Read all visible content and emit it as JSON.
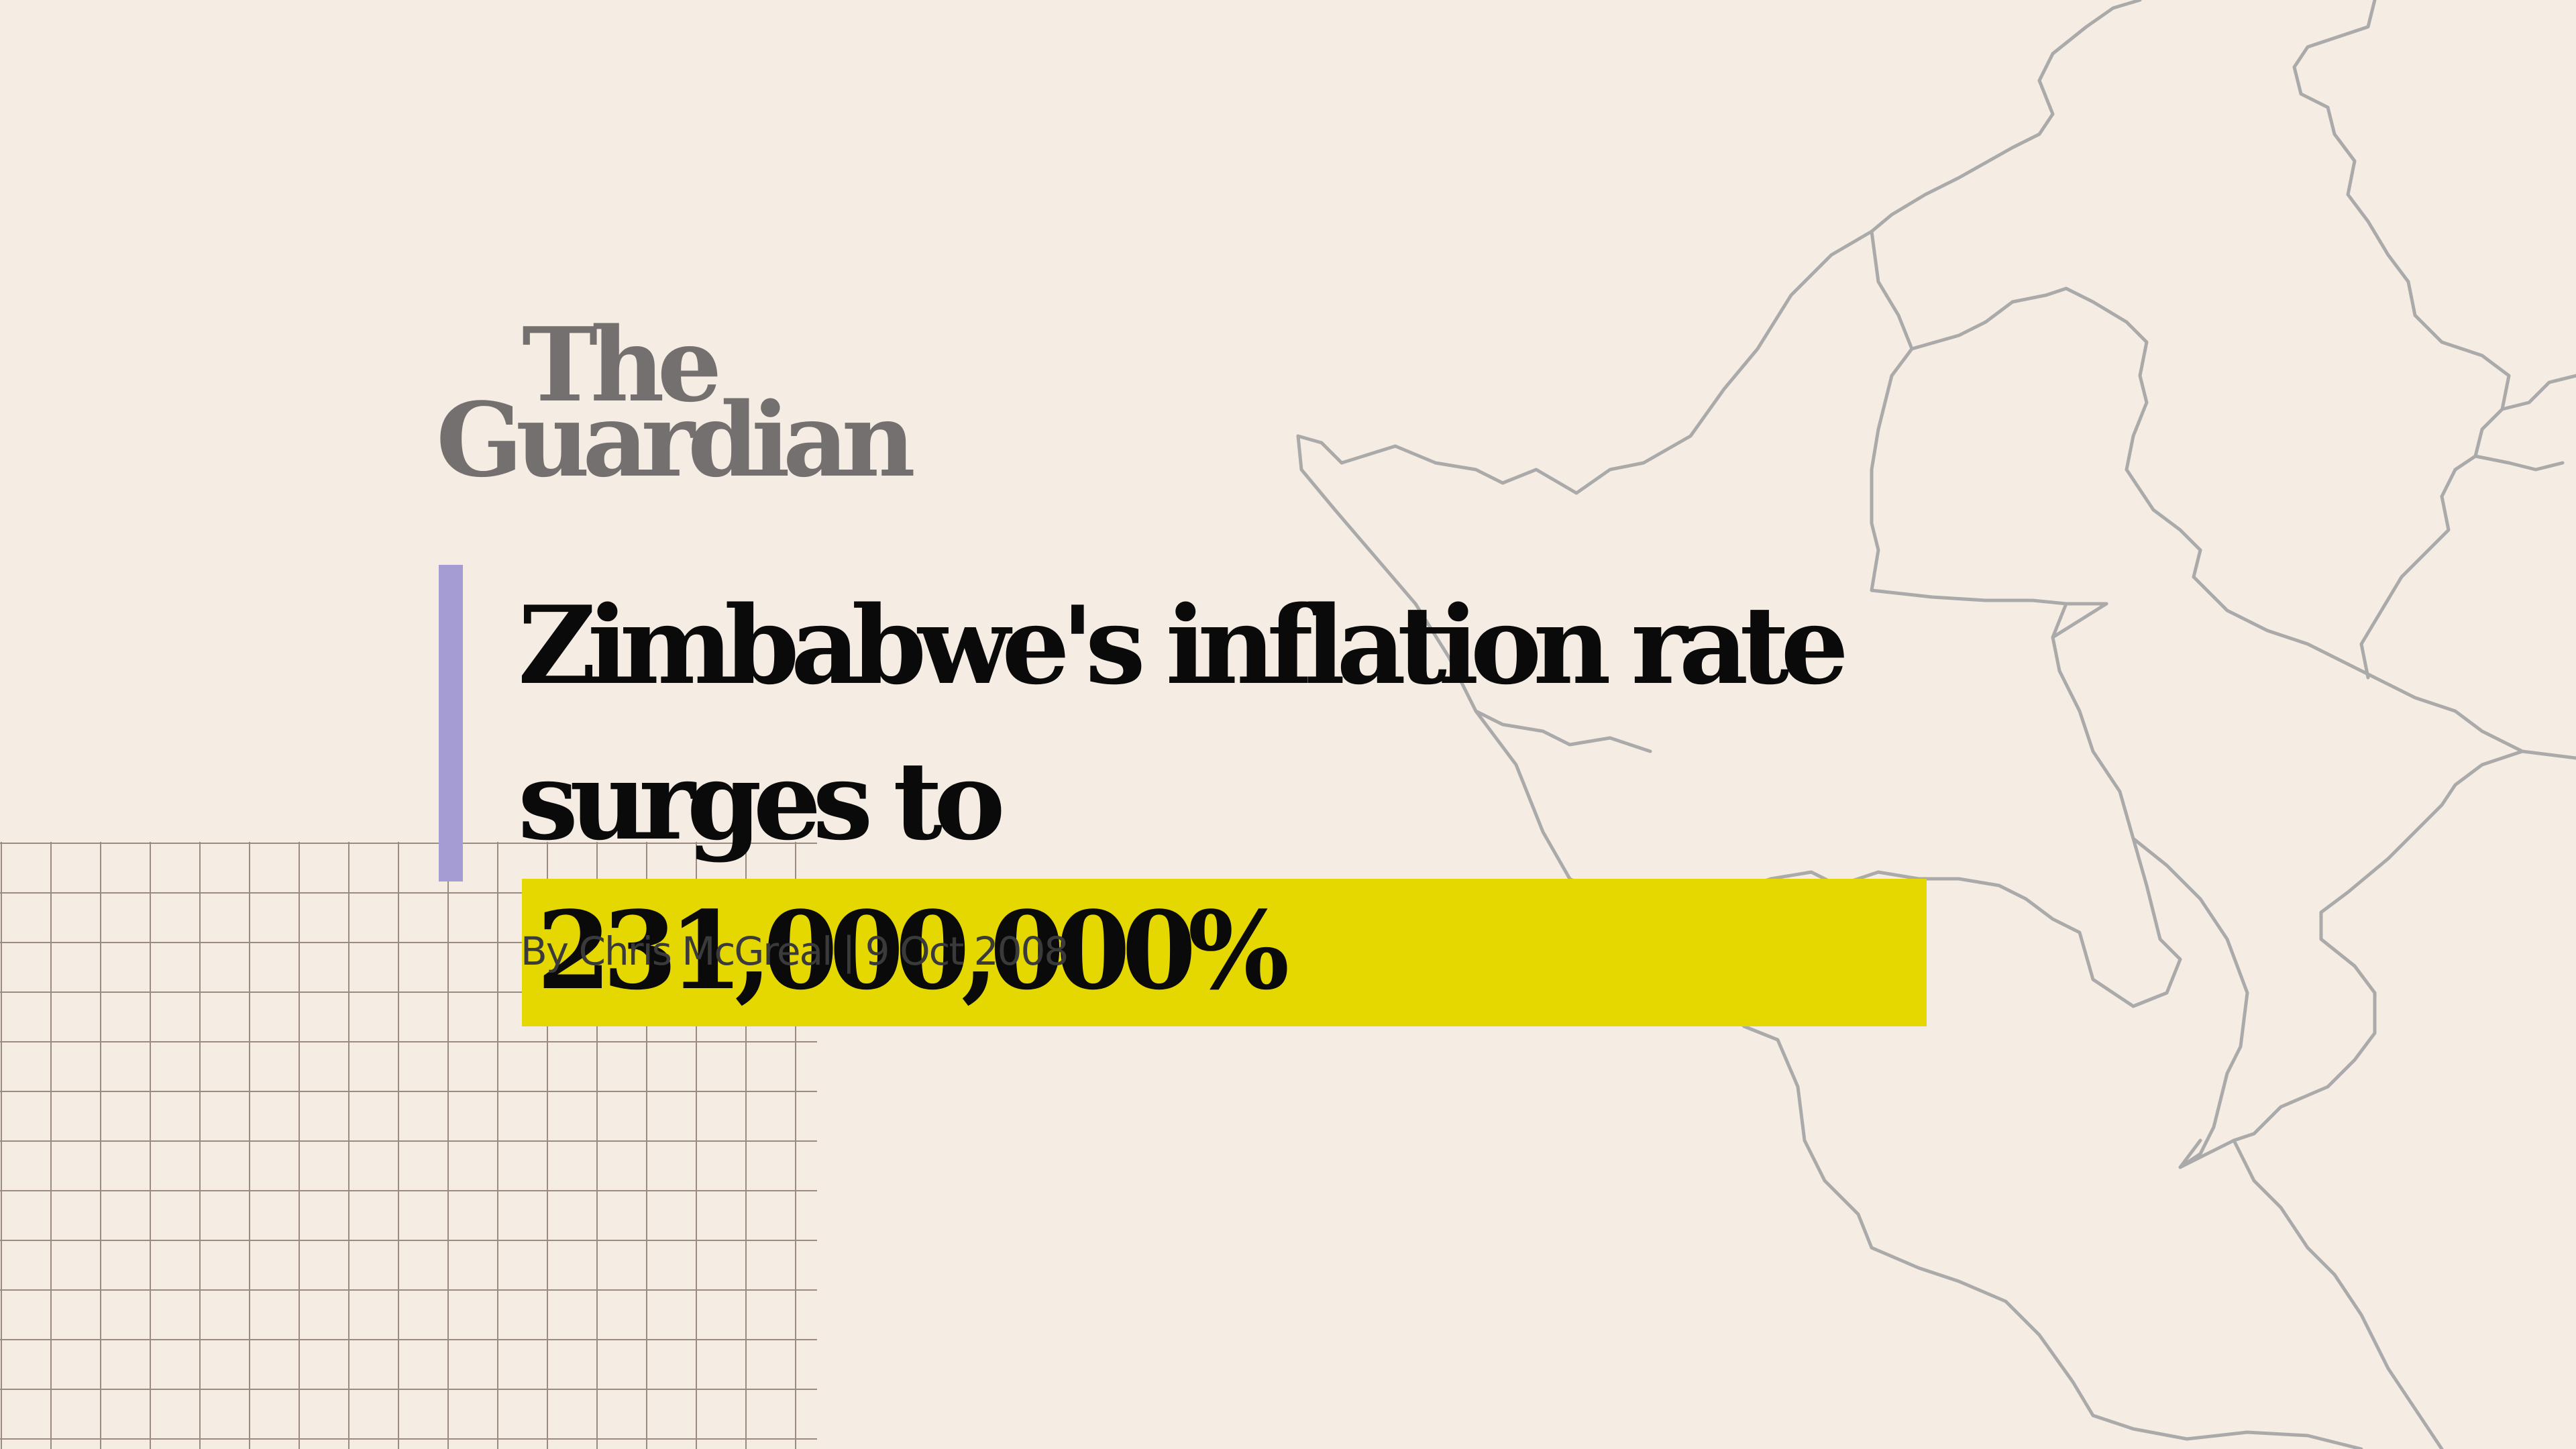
{
  "publication": {
    "logo_line_1": "The",
    "logo_line_2": "Guardian"
  },
  "article": {
    "headline_line_1": "Zimbabwe's inflation rate",
    "headline_line_2_prefix": "surges to",
    "headline_highlight": "231,000,000%",
    "byline": "By Chris McGreal | 9 Oct 2008"
  },
  "colors": {
    "background": "#f5ece3",
    "logo": "#757070",
    "accent_bar": "#a59cd4",
    "highlight": "#e5d800",
    "headline": "#0a0a0a",
    "byline": "#3a3a3a",
    "map_lines": "#aaaaaa",
    "grid_lines": "#9c8c80"
  }
}
